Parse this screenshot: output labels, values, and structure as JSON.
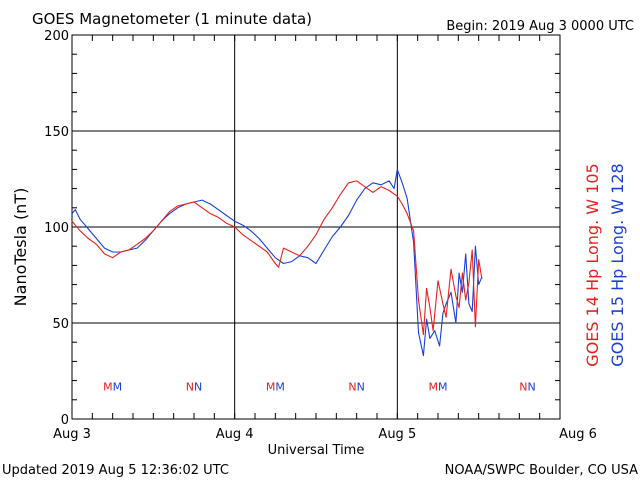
{
  "header": {
    "title": "GOES Magnetometer (1 minute data)",
    "begin": "Begin:  2019 Aug 3 0000 UTC"
  },
  "footer": {
    "updated": "Updated 2019 Aug  5 12:36:02 UTC",
    "credit": "NOAA/SWPC Boulder, CO USA"
  },
  "colors": {
    "goes14": "#e8211c",
    "goes15": "#1a3fd6",
    "grid": "#000000"
  },
  "chart_data": {
    "type": "line",
    "ylabel": "NanoTesla (nT)",
    "xlabel": "Universal Time",
    "ylim": [
      0,
      200
    ],
    "yticks": [
      "0",
      "50",
      "100",
      "150",
      "200"
    ],
    "xticks": [
      "Aug 3",
      "Aug 4",
      "Aug 5",
      "Aug 6"
    ],
    "xlim_days": [
      0,
      3
    ],
    "grid": true,
    "legend": "right-vertical",
    "series": [
      {
        "name": "GOES 14 Hp  Long. W 105",
        "color": "#e8211c",
        "x_days": [
          0.0,
          0.05,
          0.1,
          0.15,
          0.2,
          0.25,
          0.3,
          0.35,
          0.4,
          0.45,
          0.5,
          0.55,
          0.6,
          0.65,
          0.7,
          0.75,
          0.8,
          0.85,
          0.9,
          0.95,
          1.0,
          1.05,
          1.1,
          1.15,
          1.2,
          1.25,
          1.27,
          1.3,
          1.35,
          1.4,
          1.45,
          1.5,
          1.55,
          1.6,
          1.65,
          1.7,
          1.75,
          1.8,
          1.85,
          1.9,
          1.95,
          2.0,
          2.03,
          2.06,
          2.1,
          2.13,
          2.16,
          2.18,
          2.2,
          2.22,
          2.25,
          2.28,
          2.3,
          2.33,
          2.36,
          2.38,
          2.4,
          2.42,
          2.44,
          2.46,
          2.48,
          2.5,
          2.52
        ],
        "values": [
          103,
          98,
          94,
          91,
          86,
          84,
          87,
          88,
          91,
          94,
          98,
          103,
          108,
          111,
          112,
          113,
          110,
          107,
          105,
          102,
          100,
          96,
          93,
          90,
          87,
          81,
          79,
          89,
          87,
          85,
          90,
          96,
          104,
          110,
          117,
          123,
          124,
          121,
          118,
          121,
          119,
          116,
          112,
          107,
          98,
          62,
          44,
          68,
          58,
          46,
          72,
          60,
          53,
          78,
          64,
          58,
          76,
          62,
          71,
          88,
          48,
          83,
          73
        ]
      },
      {
        "name": "GOES 15 Hp  Long. W 128",
        "color": "#1a3fd6",
        "x_days": [
          0.0,
          0.02,
          0.05,
          0.1,
          0.15,
          0.2,
          0.25,
          0.3,
          0.35,
          0.4,
          0.45,
          0.5,
          0.55,
          0.6,
          0.65,
          0.7,
          0.75,
          0.8,
          0.85,
          0.9,
          0.95,
          1.0,
          1.05,
          1.1,
          1.15,
          1.2,
          1.25,
          1.3,
          1.35,
          1.4,
          1.45,
          1.5,
          1.55,
          1.6,
          1.65,
          1.7,
          1.75,
          1.8,
          1.85,
          1.9,
          1.95,
          1.98,
          2.0,
          2.03,
          2.06,
          2.1,
          2.13,
          2.16,
          2.18,
          2.2,
          2.23,
          2.26,
          2.28,
          2.3,
          2.33,
          2.36,
          2.38,
          2.4,
          2.42,
          2.44,
          2.46,
          2.48,
          2.5,
          2.52
        ],
        "values": [
          107,
          109,
          104,
          99,
          94,
          89,
          87,
          87,
          88,
          89,
          93,
          98,
          103,
          107,
          110,
          112,
          113,
          114,
          112,
          109,
          106,
          103,
          101,
          98,
          94,
          89,
          84,
          81,
          82,
          85,
          84,
          81,
          88,
          95,
          100,
          106,
          114,
          120,
          123,
          122,
          124,
          120,
          130,
          123,
          115,
          92,
          45,
          33,
          52,
          42,
          46,
          38,
          55,
          60,
          66,
          50,
          76,
          66,
          86,
          60,
          56,
          90,
          70,
          74
        ]
      }
    ],
    "markers": [
      {
        "label": "MM",
        "x_days": 0.25,
        "y": 17
      },
      {
        "label": "NN",
        "x_days": 0.75,
        "y": 17
      },
      {
        "label": "MM",
        "x_days": 1.25,
        "y": 17
      },
      {
        "label": "NN",
        "x_days": 1.75,
        "y": 17
      },
      {
        "label": "MM",
        "x_days": 2.25,
        "y": 17
      },
      {
        "label": "NN",
        "x_days": 2.8,
        "y": 17
      }
    ]
  }
}
